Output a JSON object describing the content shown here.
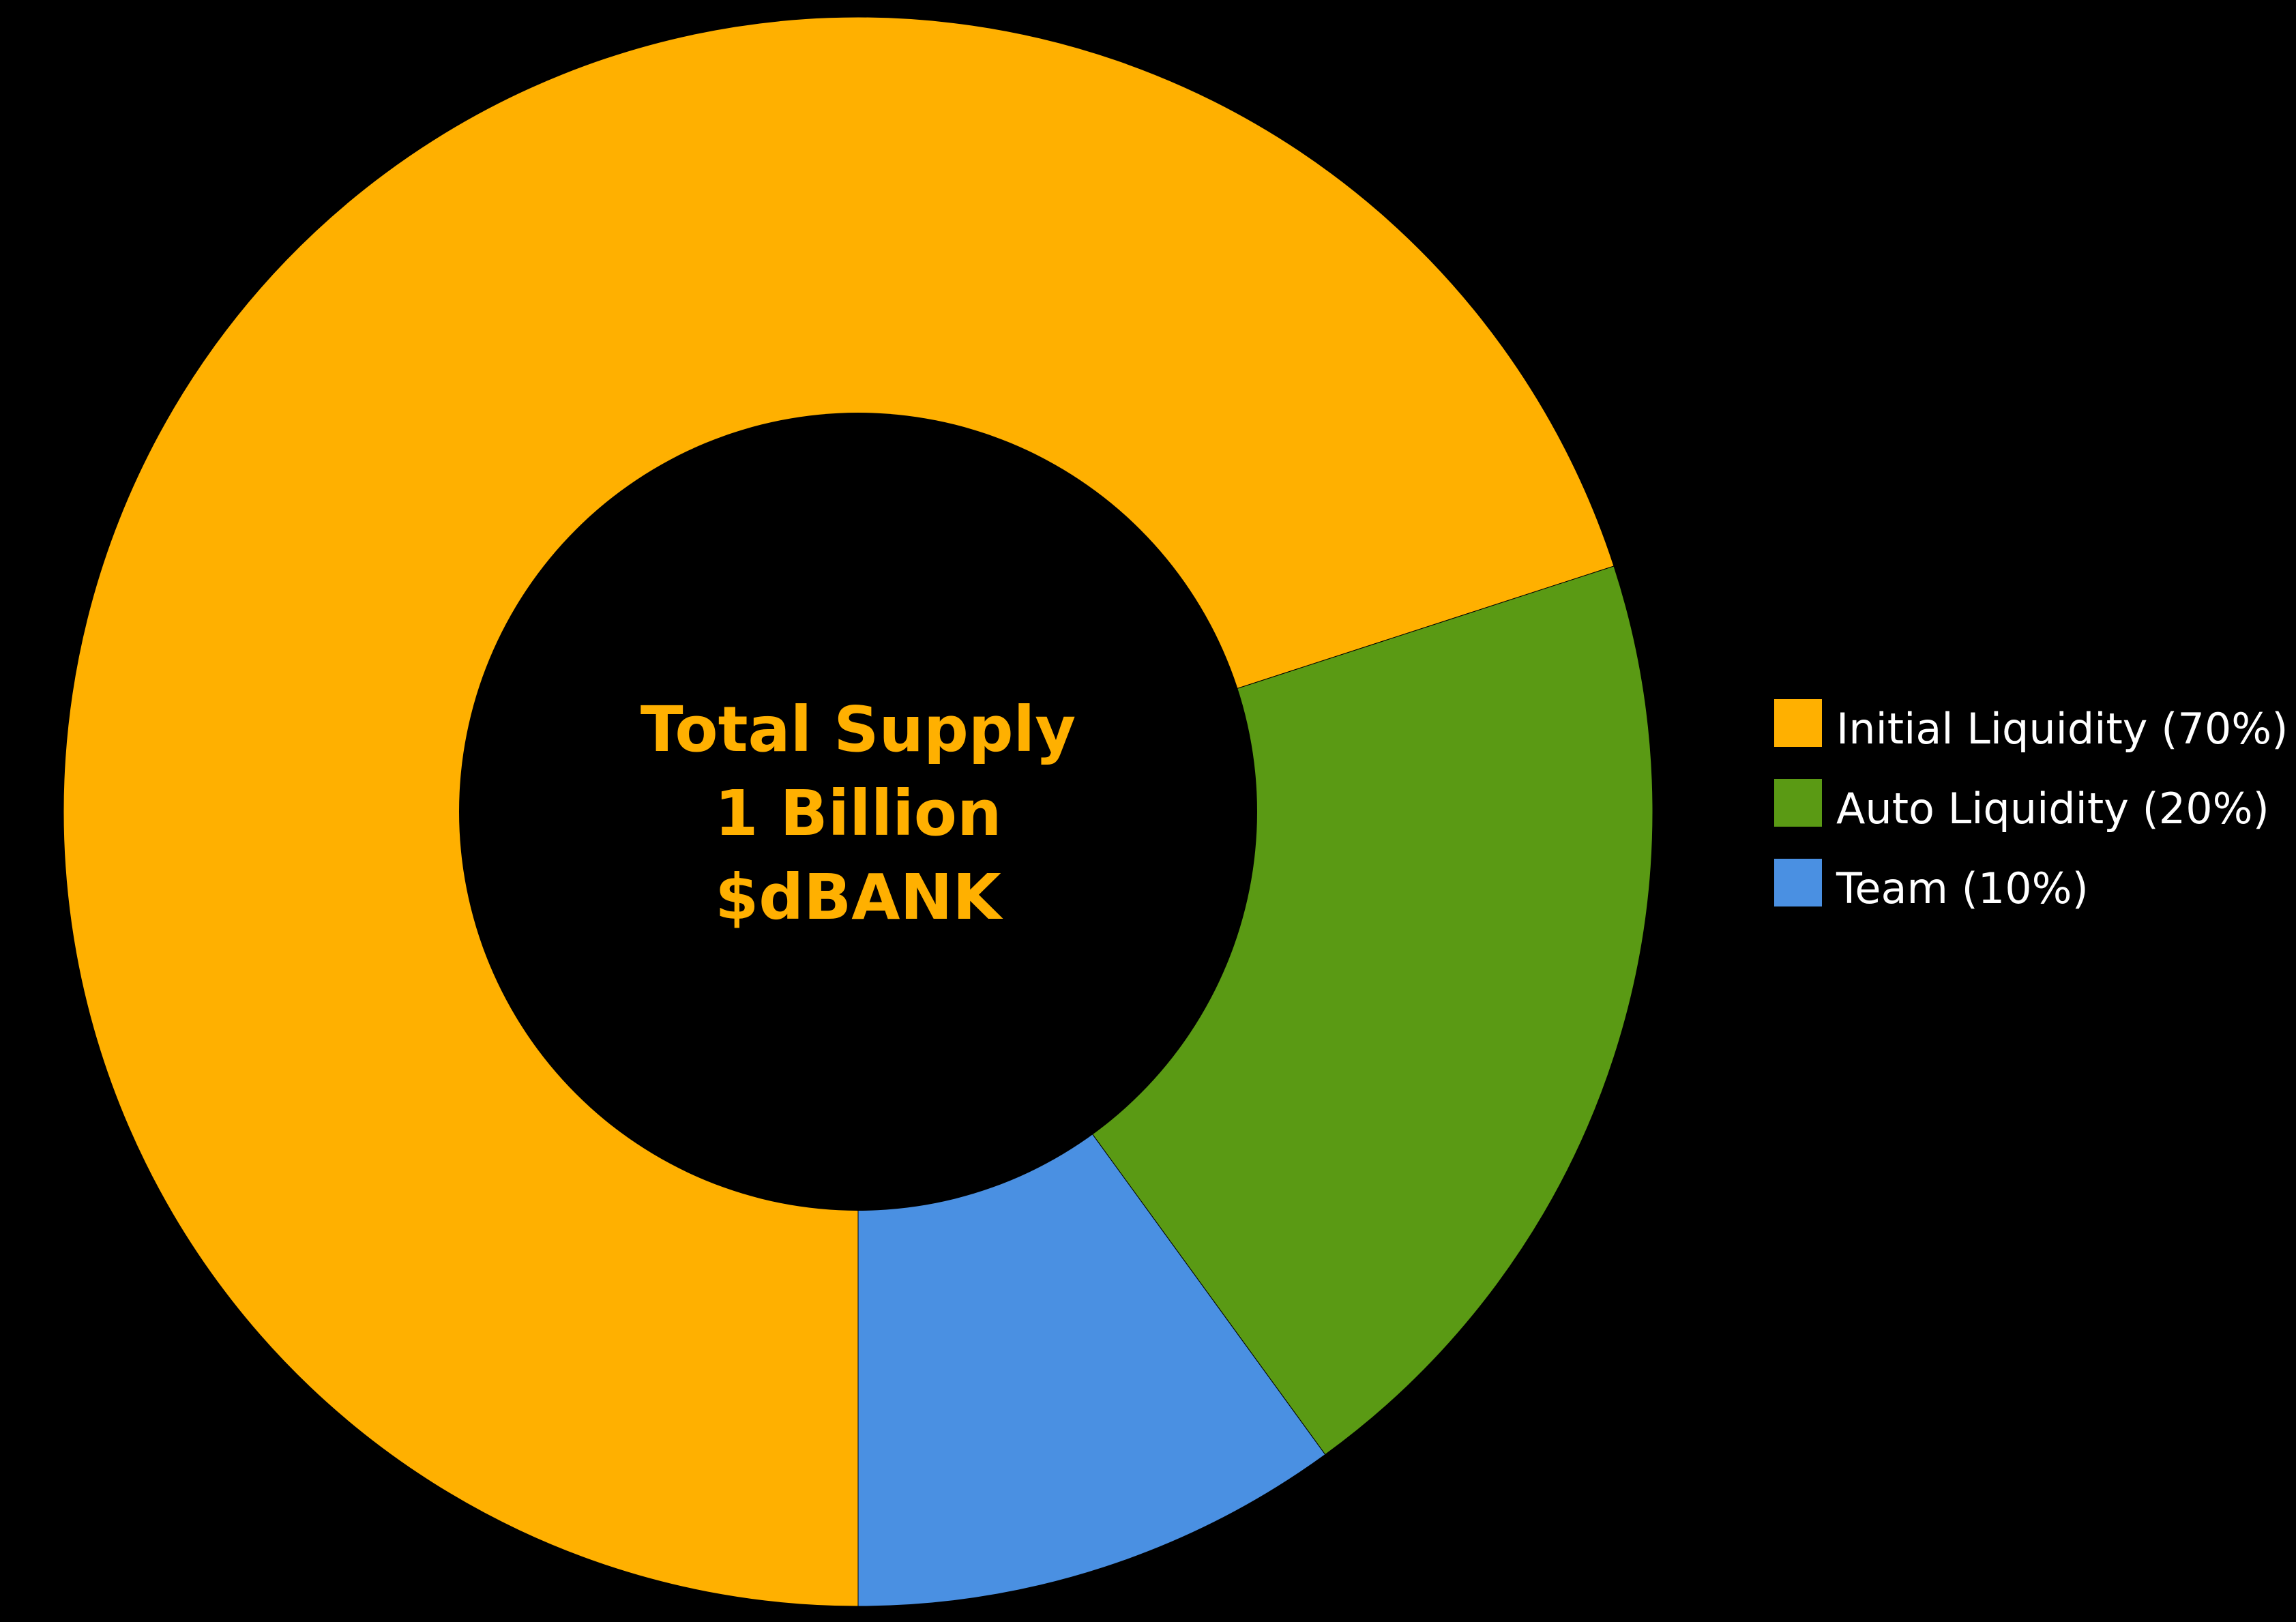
{
  "chart_data": {
    "type": "pie",
    "variant": "donut",
    "center_label": [
      "Total Supply",
      "1 Billion",
      "$dBANK"
    ],
    "center_label_color": "#FFB000",
    "slices": [
      {
        "label": "Initial Liquidity (70%)",
        "value": 70,
        "color": "#FFB000"
      },
      {
        "label": "Auto Liquidity (20%)",
        "value": 20,
        "color": "#5A9A14"
      },
      {
        "label": "Team (10%)",
        "value": 10,
        "color": "#4A90E2"
      }
    ],
    "legend_position": "right",
    "legend_text_color": "#FFFFFF",
    "background": "#000000"
  }
}
